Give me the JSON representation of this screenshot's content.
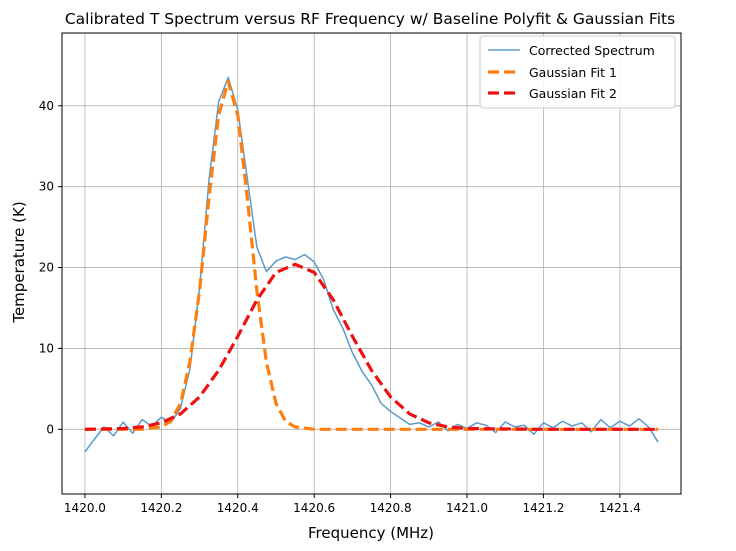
{
  "chart_data": {
    "type": "line",
    "title": "Calibrated T Spectrum versus RF Frequency w/ Baseline Polyfit & Gaussian Fits",
    "xlabel": "Frequency (MHz)",
    "ylabel": "Temperature (K)",
    "xlim": [
      1419.94,
      1421.56
    ],
    "ylim": [
      -8,
      49
    ],
    "xticks": [
      1420.0,
      1420.2,
      1420.4,
      1420.6,
      1420.8,
      1421.0,
      1421.2,
      1421.4
    ],
    "xtick_labels": [
      "1420.0",
      "1420.2",
      "1420.4",
      "1420.6",
      "1420.8",
      "1421.0",
      "1421.2",
      "1421.4"
    ],
    "yticks": [
      0,
      10,
      20,
      30,
      40
    ],
    "ytick_labels": [
      "0",
      "10",
      "20",
      "30",
      "40"
    ],
    "grid": true,
    "legend_position": "top-right",
    "series": [
      {
        "name": "Corrected Spectrum",
        "style": "solid",
        "color": "#5b9bc9",
        "x": [
          1420.0,
          1420.025,
          1420.05,
          1420.075,
          1420.1,
          1420.125,
          1420.15,
          1420.175,
          1420.2,
          1420.225,
          1420.25,
          1420.275,
          1420.3,
          1420.325,
          1420.35,
          1420.375,
          1420.4,
          1420.425,
          1420.45,
          1420.475,
          1420.5,
          1420.525,
          1420.55,
          1420.575,
          1420.6,
          1420.625,
          1420.65,
          1420.675,
          1420.7,
          1420.725,
          1420.75,
          1420.775,
          1420.8,
          1420.825,
          1420.85,
          1420.875,
          1420.9,
          1420.925,
          1420.95,
          1420.975,
          1421.0,
          1421.025,
          1421.05,
          1421.075,
          1421.1,
          1421.125,
          1421.15,
          1421.175,
          1421.2,
          1421.225,
          1421.25,
          1421.275,
          1421.3,
          1421.325,
          1421.35,
          1421.375,
          1421.4,
          1421.425,
          1421.45,
          1421.475,
          1421.5
        ],
        "y": [
          -2.8,
          -1.2,
          0.3,
          -0.8,
          0.9,
          -0.5,
          1.2,
          0.4,
          1.5,
          0.8,
          2.6,
          7.5,
          17.5,
          31.0,
          40.5,
          43.5,
          39.5,
          31.0,
          22.5,
          19.5,
          20.8,
          21.3,
          21.0,
          21.6,
          20.7,
          18.5,
          14.8,
          12.5,
          9.5,
          7.2,
          5.5,
          3.2,
          2.2,
          1.4,
          0.6,
          0.8,
          0.3,
          0.9,
          -0.2,
          0.6,
          0.1,
          0.8,
          0.5,
          -0.4,
          0.9,
          0.3,
          0.5,
          -0.6,
          0.8,
          0.2,
          1.0,
          0.4,
          0.8,
          -0.3,
          1.2,
          0.2,
          1.0,
          0.4,
          1.3,
          0.3,
          -1.6
        ]
      },
      {
        "name": "Gaussian Fit 1",
        "style": "dashed",
        "color": "#ff7f0e",
        "x": [
          1420.0,
          1420.1,
          1420.15,
          1420.2,
          1420.225,
          1420.25,
          1420.275,
          1420.3,
          1420.325,
          1420.35,
          1420.375,
          1420.4,
          1420.425,
          1420.45,
          1420.475,
          1420.5,
          1420.525,
          1420.55,
          1420.6,
          1420.7,
          1420.8,
          1421.0,
          1421.2,
          1421.5
        ],
        "y": [
          0.0,
          0.0,
          0.0,
          0.3,
          1.0,
          3.2,
          8.4,
          17.2,
          28.7,
          38.9,
          43.0,
          38.8,
          28.6,
          17.1,
          8.3,
          3.2,
          1.0,
          0.3,
          0.0,
          0.0,
          0.0,
          0.0,
          0.0,
          0.0
        ]
      },
      {
        "name": "Gaussian Fit 2",
        "style": "dashed",
        "color": "#ee1111",
        "x": [
          1420.0,
          1420.1,
          1420.15,
          1420.2,
          1420.25,
          1420.3,
          1420.35,
          1420.4,
          1420.45,
          1420.5,
          1420.55,
          1420.6,
          1420.65,
          1420.7,
          1420.75,
          1420.8,
          1420.85,
          1420.9,
          1420.95,
          1421.0,
          1421.2,
          1421.5
        ],
        "y": [
          0.0,
          0.1,
          0.3,
          0.8,
          1.9,
          4.0,
          7.3,
          11.5,
          16.0,
          19.4,
          20.4,
          19.4,
          16.0,
          11.5,
          7.3,
          4.0,
          1.9,
          0.8,
          0.3,
          0.1,
          0.0,
          0.0
        ]
      }
    ]
  }
}
